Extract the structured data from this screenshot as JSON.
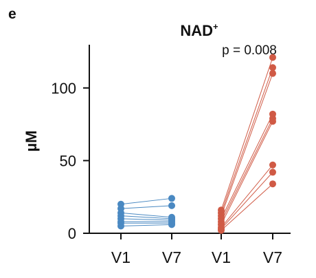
{
  "panel_label": "e",
  "chart_data": {
    "type": "scatter",
    "title": "NAD",
    "title_superscript": "+",
    "annotation": "p = 0.008",
    "ylabel": "µM",
    "xlabel": "",
    "ylim": [
      0,
      125
    ],
    "yticks": [
      0,
      50,
      100
    ],
    "grid": false,
    "legend": "none",
    "categories": [
      "V1",
      "V7",
      "V1",
      "V7"
    ],
    "groups": [
      {
        "color": "#4a89c2",
        "v1": [
          20,
          17,
          14,
          12,
          10,
          8,
          7,
          5
        ],
        "v7": [
          24,
          19,
          11,
          10,
          9,
          8,
          7,
          6
        ]
      },
      {
        "color": "#d05a45",
        "v1": [
          16,
          14,
          12,
          10,
          8,
          6,
          4,
          3,
          2
        ],
        "v7": [
          121,
          114,
          110,
          82,
          79,
          77,
          47,
          42,
          34
        ]
      }
    ]
  }
}
